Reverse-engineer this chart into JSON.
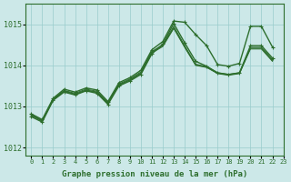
{
  "background_color": "#cce8e8",
  "grid_color": "#99cccc",
  "line_color": "#2d6e2d",
  "xlabel": "Graphe pression niveau de la mer (hPa)",
  "xlabel_fontsize": 6.5,
  "xlim": [
    -0.5,
    23
  ],
  "ylim": [
    1011.8,
    1015.5
  ],
  "yticks": [
    1012,
    1013,
    1014,
    1015
  ],
  "xticks": [
    0,
    1,
    2,
    3,
    4,
    5,
    6,
    7,
    8,
    9,
    10,
    11,
    12,
    13,
    14,
    15,
    16,
    17,
    18,
    19,
    20,
    21,
    22,
    23
  ],
  "lines": [
    {
      "x": [
        0,
        1,
        2,
        3,
        4,
        5,
        6,
        7,
        8,
        9,
        10,
        11,
        12,
        13,
        14,
        15,
        16,
        17,
        18,
        19,
        20,
        21,
        22
      ],
      "y": [
        1012.75,
        1012.62,
        1013.15,
        1013.35,
        1013.28,
        1013.38,
        1013.32,
        1013.05,
        1013.5,
        1013.62,
        1013.78,
        1014.28,
        1014.52,
        1015.02,
        1014.55,
        1014.1,
        1013.98,
        1013.82,
        1013.78,
        1013.82,
        1014.48,
        1014.48,
        1014.18
      ],
      "lw": 1.0,
      "marker": "+"
    },
    {
      "x": [
        0,
        1,
        2,
        3,
        4,
        5,
        6,
        7,
        8,
        9,
        10,
        11,
        12,
        13,
        14,
        15,
        16,
        17,
        18,
        19,
        20,
        21,
        22
      ],
      "y": [
        1012.82,
        1012.68,
        1013.2,
        1013.42,
        1013.35,
        1013.45,
        1013.4,
        1013.12,
        1013.58,
        1013.7,
        1013.88,
        1014.38,
        1014.58,
        1015.08,
        1015.05,
        1014.75,
        1014.48,
        1014.02,
        1013.98,
        1014.05,
        1014.95,
        1014.95,
        1014.45
      ],
      "lw": 1.0,
      "marker": "+"
    },
    {
      "x": [
        0,
        1,
        2,
        3,
        4,
        5,
        6,
        7,
        8,
        9,
        10,
        11,
        12,
        13,
        14,
        15,
        16,
        17,
        18,
        19,
        20,
        21,
        22
      ],
      "y": [
        1012.78,
        1012.65,
        1013.17,
        1013.38,
        1013.3,
        1013.4,
        1013.35,
        1013.08,
        1013.53,
        1013.65,
        1013.82,
        1014.32,
        1014.48,
        1014.92,
        1014.45,
        1014.0,
        1013.95,
        1013.8,
        1013.76,
        1013.8,
        1014.42,
        1014.42,
        1014.12
      ],
      "lw": 0.75,
      "marker": null
    },
    {
      "x": [
        0,
        1,
        2,
        3,
        4,
        5,
        6,
        7,
        8,
        9,
        10,
        11,
        12,
        13,
        14,
        15,
        16,
        17,
        18,
        19,
        20,
        21,
        22
      ],
      "y": [
        1012.8,
        1012.66,
        1013.18,
        1013.39,
        1013.32,
        1013.42,
        1013.37,
        1013.1,
        1013.55,
        1013.67,
        1013.84,
        1014.34,
        1014.5,
        1014.95,
        1014.48,
        1014.03,
        1013.97,
        1013.82,
        1013.78,
        1013.82,
        1014.44,
        1014.44,
        1014.14
      ],
      "lw": 0.75,
      "marker": null
    },
    {
      "x": [
        0,
        1,
        2,
        3,
        4,
        5,
        6,
        7,
        8,
        9,
        10,
        11,
        12,
        13,
        14,
        15,
        16,
        17,
        18,
        19,
        20,
        21,
        22
      ],
      "y": [
        1012.79,
        1012.64,
        1013.16,
        1013.37,
        1013.29,
        1013.39,
        1013.34,
        1013.07,
        1013.52,
        1013.64,
        1013.8,
        1014.3,
        1014.46,
        1014.9,
        1014.44,
        1014.01,
        1013.96,
        1013.81,
        1013.77,
        1013.81,
        1014.4,
        1014.4,
        1014.1
      ],
      "lw": 0.75,
      "marker": null
    }
  ]
}
